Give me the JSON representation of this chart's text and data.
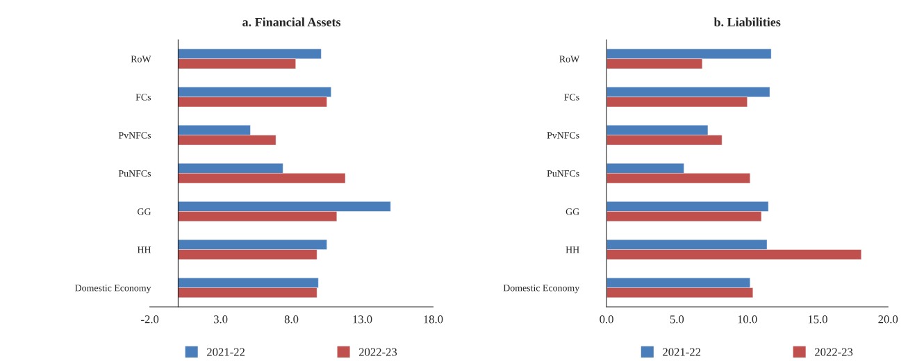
{
  "chart_data": [
    {
      "type": "bar",
      "title": "a. Financial Assets",
      "orientation": "horizontal",
      "categories": [
        "RoW",
        "FCs",
        "PvNFCs",
        "PuNFCs",
        "GG",
        "HH",
        "Domestic Economy"
      ],
      "series": [
        {
          "name": "2021-22",
          "color": "#4a7ebb",
          "values": [
            10.1,
            10.8,
            5.1,
            7.4,
            15.0,
            10.5,
            9.9
          ]
        },
        {
          "name": "2022-23",
          "color": "#c0504d",
          "values": [
            8.3,
            10.5,
            6.9,
            11.8,
            11.2,
            9.8,
            9.8
          ]
        }
      ],
      "xlim": [
        -2,
        18
      ],
      "xticks": [
        {
          "value": -2,
          "label": "-2.0"
        },
        {
          "value": 3,
          "label": "3.0"
        },
        {
          "value": 8,
          "label": "8.0"
        },
        {
          "value": 13,
          "label": "13.0"
        },
        {
          "value": 18,
          "label": "18.0"
        }
      ],
      "grid": false,
      "legend": "bottom"
    },
    {
      "type": "bar",
      "title": "b. Liabilities",
      "orientation": "horizontal",
      "categories": [
        "RoW",
        "FCs",
        "PvNFCs",
        "PuNFCs",
        "GG",
        "HH",
        "Domestic Economy"
      ],
      "series": [
        {
          "name": "2021-22",
          "color": "#4a7ebb",
          "values": [
            11.7,
            11.6,
            7.2,
            5.5,
            11.5,
            11.4,
            10.2
          ]
        },
        {
          "name": "2022-23",
          "color": "#c0504d",
          "values": [
            6.8,
            10.0,
            8.2,
            10.2,
            11.0,
            18.1,
            10.4
          ]
        }
      ],
      "xlim": [
        0,
        20
      ],
      "xticks": [
        {
          "value": 0,
          "label": "0.0"
        },
        {
          "value": 5,
          "label": "5.0"
        },
        {
          "value": 10,
          "label": "10.0"
        },
        {
          "value": 15,
          "label": "15.0"
        },
        {
          "value": 20,
          "label": "20.0"
        }
      ],
      "grid": false,
      "legend": "bottom"
    }
  ]
}
